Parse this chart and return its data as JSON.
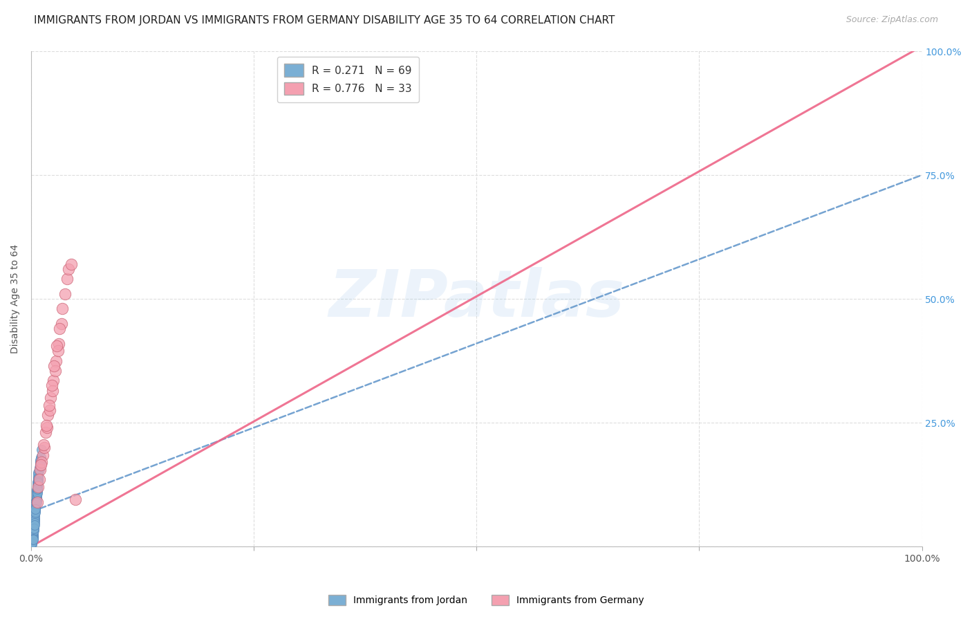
{
  "title": "IMMIGRANTS FROM JORDAN VS IMMIGRANTS FROM GERMANY DISABILITY AGE 35 TO 64 CORRELATION CHART",
  "source": "Source: ZipAtlas.com",
  "ylabel": "Disability Age 35 to 64",
  "xlim": [
    0,
    1
  ],
  "ylim": [
    0,
    1
  ],
  "xtick_pos": [
    0.0,
    0.25,
    0.5,
    0.75,
    1.0
  ],
  "xticklabels": [
    "0.0%",
    "",
    "",
    "",
    "100.0%"
  ],
  "ytick_pos": [
    0.0,
    0.25,
    0.5,
    0.75,
    1.0
  ],
  "ytick_labels_right": [
    "",
    "25.0%",
    "50.0%",
    "75.0%",
    "100.0%"
  ],
  "watermark": "ZIPatlas",
  "jordan_color": "#7BAFD4",
  "jordan_edge": "#5588BB",
  "germany_color": "#F4A0B0",
  "germany_edge": "#CC6677",
  "jordan_R": 0.271,
  "jordan_N": 69,
  "germany_R": 0.776,
  "germany_N": 33,
  "jordan_line_color": "#6699CC",
  "germany_line_color": "#EE6688",
  "jordan_line_intercept": 0.07,
  "jordan_line_slope": 0.68,
  "germany_line_intercept": 0.0,
  "germany_line_slope": 1.01,
  "jordan_x": [
    0.003,
    0.005,
    0.007,
    0.008,
    0.01,
    0.012,
    0.002,
    0.004,
    0.006,
    0.001,
    0.009,
    0.011,
    0.003,
    0.006,
    0.008,
    0.005,
    0.007,
    0.002,
    0.004,
    0.01,
    0.001,
    0.003,
    0.006,
    0.008,
    0.005,
    0.007,
    0.009,
    0.002,
    0.004,
    0.006,
    0.001,
    0.003,
    0.005,
    0.007,
    0.01,
    0.002,
    0.004,
    0.006,
    0.008,
    0.003,
    0.005,
    0.007,
    0.001,
    0.002,
    0.004,
    0.006,
    0.008,
    0.01,
    0.003,
    0.005,
    0.007,
    0.002,
    0.004,
    0.006,
    0.008,
    0.001,
    0.003,
    0.005,
    0.007,
    0.002,
    0.004,
    0.006,
    0.008,
    0.01,
    0.003,
    0.005,
    0.007,
    0.002,
    0.004
  ],
  "jordan_y": [
    0.05,
    0.08,
    0.12,
    0.15,
    0.17,
    0.195,
    0.03,
    0.07,
    0.1,
    0.015,
    0.16,
    0.18,
    0.04,
    0.11,
    0.14,
    0.09,
    0.13,
    0.025,
    0.06,
    0.165,
    0.01,
    0.045,
    0.105,
    0.145,
    0.085,
    0.125,
    0.155,
    0.02,
    0.065,
    0.115,
    0.005,
    0.035,
    0.08,
    0.12,
    0.175,
    0.022,
    0.055,
    0.095,
    0.135,
    0.042,
    0.075,
    0.115,
    0.008,
    0.018,
    0.058,
    0.098,
    0.138,
    0.168,
    0.038,
    0.072,
    0.112,
    0.019,
    0.052,
    0.092,
    0.132,
    0.007,
    0.033,
    0.068,
    0.108,
    0.016,
    0.048,
    0.088,
    0.128,
    0.162,
    0.036,
    0.076,
    0.116,
    0.014,
    0.044
  ],
  "germany_x": [
    0.008,
    0.01,
    0.013,
    0.016,
    0.019,
    0.022,
    0.025,
    0.028,
    0.031,
    0.034,
    0.012,
    0.015,
    0.018,
    0.021,
    0.024,
    0.027,
    0.03,
    0.009,
    0.011,
    0.014,
    0.017,
    0.02,
    0.023,
    0.026,
    0.029,
    0.032,
    0.035,
    0.04,
    0.007,
    0.038,
    0.042,
    0.045,
    0.05
  ],
  "germany_y": [
    0.12,
    0.155,
    0.185,
    0.23,
    0.265,
    0.3,
    0.335,
    0.375,
    0.41,
    0.45,
    0.17,
    0.2,
    0.24,
    0.275,
    0.315,
    0.355,
    0.395,
    0.135,
    0.165,
    0.205,
    0.245,
    0.285,
    0.325,
    0.365,
    0.405,
    0.44,
    0.48,
    0.54,
    0.09,
    0.51,
    0.56,
    0.57,
    0.095
  ],
  "background_color": "#FFFFFF",
  "grid_color": "#DDDDDD",
  "title_fontsize": 11,
  "axis_label_fontsize": 10,
  "tick_fontsize": 10,
  "legend_fontsize": 11
}
